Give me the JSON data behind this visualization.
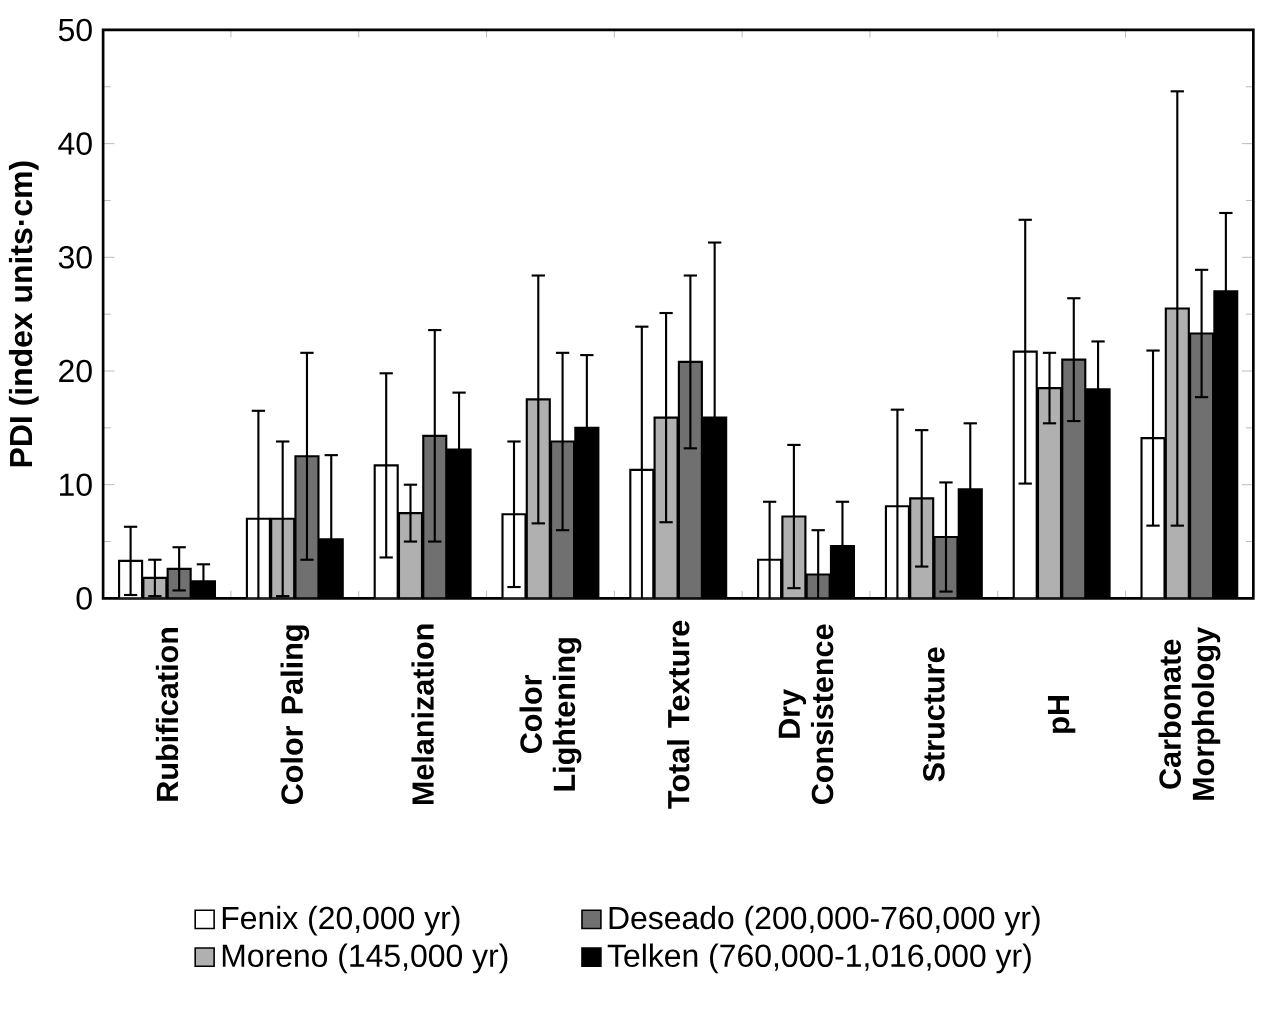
{
  "chart_data": {
    "type": "bar",
    "ylabel": "PDI (index units·cm)",
    "categories": [
      "Rubification",
      "Color Paling",
      "Melanization",
      "Color Lightening",
      "Total Texture",
      "Dry Consistence",
      "Structure",
      "pH",
      "Carbonate Morphology"
    ],
    "series": [
      {
        "name": "Fenix (20,000 yr)",
        "color": "#ffffff",
        "values": [
          3.3,
          7,
          11.7,
          7.4,
          11.3,
          3.4,
          8.1,
          21.7,
          14.1
        ],
        "errors": [
          3,
          9.5,
          8.1,
          6.4,
          12.6,
          5.1,
          8.5,
          11.6,
          7.7
        ]
      },
      {
        "name": "Moreno (145,000 yr)",
        "color": "#b0b0b0",
        "values": [
          1.8,
          7,
          7.5,
          17.5,
          15.9,
          7.2,
          8.8,
          18.5,
          25.5
        ],
        "errors": [
          1.6,
          6.8,
          2.5,
          10.9,
          9.2,
          6.3,
          6,
          3.1,
          19.1
        ]
      },
      {
        "name": "Deseado (200,000-760,000 yr)",
        "color": "#707070",
        "values": [
          2.6,
          12.5,
          14.3,
          13.8,
          20.8,
          2.1,
          5.4,
          21,
          23.3
        ],
        "errors": [
          1.9,
          9.1,
          9.3,
          7.8,
          7.6,
          3.9,
          4.8,
          5.4,
          5.6
        ]
      },
      {
        "name": "Telken (760,000-1,016,000 yr)",
        "color": "#000000",
        "values": [
          1.5,
          5.2,
          13.1,
          15,
          15.9,
          4.6,
          9.6,
          18.4,
          27
        ],
        "errors": [
          1.5,
          7.4,
          5,
          6.4,
          15.4,
          3.9,
          5.8,
          4.2,
          6.9
        ]
      }
    ],
    "ylim": [
      0,
      50
    ],
    "yticks": [
      0,
      10,
      20,
      30,
      40,
      50
    ],
    "grid": false,
    "legend": "bottom"
  }
}
